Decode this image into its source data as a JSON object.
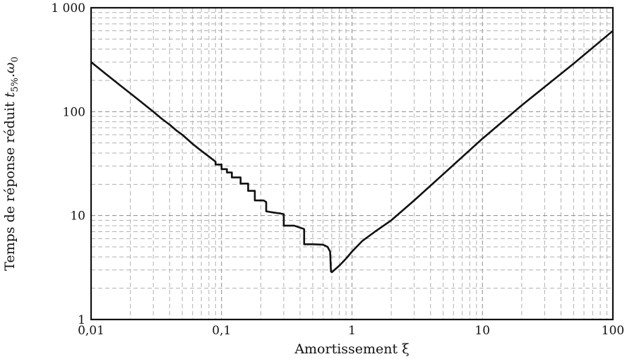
{
  "chart_data": {
    "type": "line",
    "xscale": "log",
    "yscale": "log",
    "xlim": [
      0.01,
      100
    ],
    "ylim": [
      1,
      1000
    ],
    "grid": true,
    "xlabel": "Amortissement ξ",
    "ylabel": {
      "prefix": "Temps de réponse réduit ",
      "var": "t",
      "sub": "5%",
      "suffix": ".ω",
      "sub2": "0"
    },
    "xticks": [
      {
        "value": 0.01,
        "label": "0,01"
      },
      {
        "value": 0.1,
        "label": "0,1"
      },
      {
        "value": 1,
        "label": "1"
      },
      {
        "value": 10,
        "label": "10"
      },
      {
        "value": 100,
        "label": "100"
      }
    ],
    "yticks": [
      {
        "value": 1,
        "label": "1"
      },
      {
        "value": 10,
        "label": "10"
      },
      {
        "value": 100,
        "label": "100"
      },
      {
        "value": 1000,
        "label": "1 000"
      }
    ],
    "series": [
      {
        "points": [
          [
            0.01,
            300
          ],
          [
            0.013,
            230
          ],
          [
            0.017,
            176
          ],
          [
            0.02,
            150
          ],
          [
            0.025,
            120
          ],
          [
            0.03,
            100
          ],
          [
            0.035,
            85
          ],
          [
            0.04,
            75
          ],
          [
            0.045,
            66
          ],
          [
            0.05,
            60
          ],
          [
            0.06,
            49
          ],
          [
            0.07,
            42
          ],
          [
            0.08,
            37
          ],
          [
            0.09,
            33
          ],
          [
            0.09,
            31
          ],
          [
            0.1,
            31
          ],
          [
            0.1,
            28
          ],
          [
            0.11,
            28
          ],
          [
            0.11,
            26
          ],
          [
            0.12,
            26
          ],
          [
            0.12,
            23.3
          ],
          [
            0.14,
            23.3
          ],
          [
            0.14,
            20.3
          ],
          [
            0.16,
            20.3
          ],
          [
            0.16,
            17.3
          ],
          [
            0.18,
            17.3
          ],
          [
            0.18,
            14
          ],
          [
            0.21,
            14
          ],
          [
            0.22,
            13.5
          ],
          [
            0.22,
            11
          ],
          [
            0.25,
            10.7
          ],
          [
            0.28,
            10.5
          ],
          [
            0.3,
            10.3
          ],
          [
            0.3,
            8
          ],
          [
            0.36,
            8
          ],
          [
            0.42,
            7.5
          ],
          [
            0.43,
            7.4
          ],
          [
            0.43,
            5.3
          ],
          [
            0.5,
            5.3
          ],
          [
            0.6,
            5.25
          ],
          [
            0.65,
            5
          ],
          [
            0.68,
            4.5
          ],
          [
            0.69,
            2.9
          ],
          [
            0.7,
            2.85
          ],
          [
            0.8,
            3.3
          ],
          [
            0.9,
            3.85
          ],
          [
            1,
            4.5
          ],
          [
            1.2,
            5.7
          ],
          [
            1.5,
            7
          ],
          [
            2,
            9
          ],
          [
            3,
            14
          ],
          [
            5,
            25
          ],
          [
            10,
            55
          ],
          [
            20,
            115
          ],
          [
            50,
            290
          ],
          [
            100,
            600
          ]
        ]
      }
    ]
  }
}
